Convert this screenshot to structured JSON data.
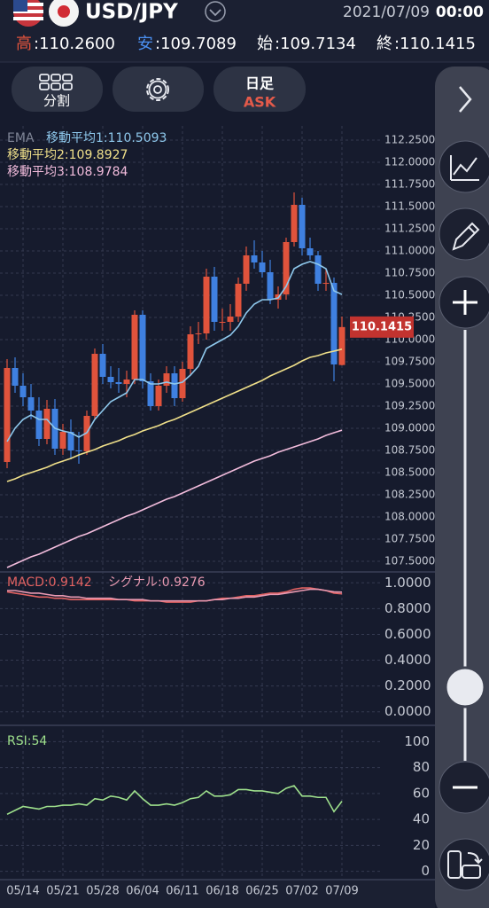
{
  "header": {
    "symbol": "USD/JPY",
    "date": "2021/07/09",
    "time": "00:00",
    "stats": [
      {
        "label": "高",
        "value": ":110.2600"
      },
      {
        "label": "安",
        "value": ":109.7089"
      },
      {
        "label": "始",
        "value": ":109.7134"
      },
      {
        "label": "終",
        "value": ":110.1415"
      }
    ]
  },
  "toolbar": {
    "split": "分割",
    "timeframe": "日足",
    "side": "ASK"
  },
  "chart_data": [
    {
      "type": "candlestick",
      "categories": [
        null,
        null,
        "05/14",
        null,
        null,
        null,
        null,
        "05/21",
        null,
        null,
        null,
        null,
        "05/28",
        null,
        null,
        null,
        null,
        "06/04",
        null,
        null,
        null,
        null,
        "06/11",
        null,
        null,
        null,
        null,
        "06/18",
        null,
        null,
        null,
        null,
        "06/25",
        null,
        null,
        null,
        null,
        "07/02",
        null,
        null,
        null,
        null,
        "07/09"
      ],
      "open": [
        108.62,
        109.68,
        109.48,
        109.35,
        109.2,
        108.88,
        109.22,
        108.77,
        108.96,
        108.75,
        108.74,
        109.14,
        109.84,
        109.58,
        109.52,
        109.5,
        109.55,
        110.28,
        109.53,
        109.25,
        109.48,
        109.62,
        109.34,
        109.67,
        110.06,
        110.07,
        110.71,
        110.2,
        110.2,
        110.26,
        110.63,
        110.95,
        110.87,
        110.76,
        110.45,
        110.51,
        111.1,
        111.52,
        111.03,
        110.95,
        110.63,
        110.64,
        109.7134
      ],
      "high": [
        109.78,
        109.8,
        109.62,
        109.5,
        109.35,
        109.32,
        109.33,
        109.05,
        109.1,
        108.96,
        109.2,
        109.9,
        109.95,
        109.7,
        109.68,
        109.65,
        110.33,
        110.33,
        109.62,
        109.55,
        109.7,
        109.7,
        109.75,
        110.15,
        110.2,
        110.8,
        110.82,
        110.35,
        110.4,
        110.7,
        111.05,
        111.12,
        111.0,
        110.9,
        110.6,
        111.15,
        111.66,
        111.6,
        111.15,
        111.0,
        110.8,
        110.7,
        110.26
      ],
      "low": [
        108.55,
        109.4,
        109.25,
        109.1,
        108.8,
        108.82,
        108.7,
        108.7,
        108.65,
        108.6,
        108.7,
        109.1,
        109.5,
        109.45,
        109.4,
        109.35,
        109.5,
        109.45,
        109.2,
        109.2,
        109.4,
        109.25,
        109.3,
        109.6,
        109.95,
        110.0,
        110.1,
        110.1,
        110.1,
        110.2,
        110.55,
        110.8,
        110.7,
        110.4,
        110.35,
        110.45,
        111.05,
        110.95,
        110.9,
        110.55,
        110.55,
        109.53,
        109.7089
      ],
      "close": [
        109.68,
        109.48,
        109.35,
        109.2,
        108.88,
        109.22,
        108.77,
        108.96,
        108.75,
        108.74,
        109.14,
        109.84,
        109.58,
        109.52,
        109.5,
        109.55,
        110.28,
        109.53,
        109.25,
        109.48,
        109.62,
        109.34,
        109.67,
        110.06,
        110.07,
        110.71,
        110.2,
        110.2,
        110.26,
        110.63,
        110.95,
        110.87,
        110.76,
        110.45,
        110.51,
        111.1,
        111.52,
        111.03,
        110.95,
        110.63,
        110.64,
        109.72,
        110.1415
      ],
      "up_color": "#e0533c",
      "down_color": "#3f80e0",
      "current_price": 110.1415,
      "legend_prefix": "EMA",
      "series": [
        {
          "name": "移動平均1:110.5093",
          "color": "#8ec8ec",
          "values": [
            108.85,
            109.0,
            109.1,
            109.15,
            109.1,
            109.1,
            109.0,
            108.97,
            108.95,
            108.9,
            108.95,
            109.1,
            109.2,
            109.3,
            109.35,
            109.4,
            109.55,
            109.55,
            109.5,
            109.5,
            109.52,
            109.5,
            109.52,
            109.6,
            109.7,
            109.9,
            109.95,
            110.0,
            110.05,
            110.15,
            110.3,
            110.4,
            110.45,
            110.45,
            110.47,
            110.6,
            110.8,
            110.85,
            110.88,
            110.85,
            110.8,
            110.55,
            110.5093
          ]
        },
        {
          "name": "移動平均2:109.8927",
          "color": "#f0e08a",
          "values": [
            108.4,
            108.43,
            108.47,
            108.5,
            108.53,
            108.56,
            108.6,
            108.63,
            108.66,
            108.7,
            108.73,
            108.76,
            108.8,
            108.83,
            108.86,
            108.9,
            108.93,
            108.97,
            109.0,
            109.03,
            109.07,
            109.1,
            109.14,
            109.18,
            109.22,
            109.26,
            109.3,
            109.34,
            109.38,
            109.42,
            109.46,
            109.5,
            109.54,
            109.59,
            109.63,
            109.67,
            109.71,
            109.76,
            109.8,
            109.82,
            109.85,
            109.87,
            109.8927
          ]
        },
        {
          "name": "移動平均3:108.9784",
          "color": "#f2bcdc",
          "values": [
            107.43,
            107.47,
            107.51,
            107.55,
            107.58,
            107.62,
            107.66,
            107.7,
            107.74,
            107.78,
            107.81,
            107.85,
            107.89,
            107.93,
            107.97,
            108.01,
            108.04,
            108.08,
            108.12,
            108.16,
            108.2,
            108.23,
            108.27,
            108.31,
            108.35,
            108.39,
            108.43,
            108.47,
            108.51,
            108.55,
            108.59,
            108.63,
            108.66,
            108.69,
            108.73,
            108.76,
            108.79,
            108.82,
            108.85,
            108.88,
            108.92,
            108.95,
            108.9784
          ]
        }
      ],
      "ylim": [
        107.4,
        112.35
      ],
      "yticks": [
        {
          "value": 112.25,
          "label": "112.2500"
        },
        {
          "value": 112.0,
          "label": "112.0000"
        },
        {
          "value": 111.75,
          "label": "111.7500"
        },
        {
          "value": 111.5,
          "label": "111.5000"
        },
        {
          "value": 111.25,
          "label": "111.2500"
        },
        {
          "value": 111.0,
          "label": "111.0000"
        },
        {
          "value": 110.75,
          "label": "110.7500"
        },
        {
          "value": 110.5,
          "label": "110.5000"
        },
        {
          "value": 110.25,
          "label": "110.2500"
        },
        {
          "value": 110.0,
          "label": "110.0000"
        },
        {
          "value": 109.75,
          "label": "109.7500"
        },
        {
          "value": 109.5,
          "label": "109.5000"
        },
        {
          "value": 109.25,
          "label": "109.2500"
        },
        {
          "value": 109.0,
          "label": "109.0000"
        },
        {
          "value": 108.75,
          "label": "108.7500"
        },
        {
          "value": 108.5,
          "label": "108.5000"
        },
        {
          "value": 108.25,
          "label": "108.2500"
        },
        {
          "value": 108.0,
          "label": "108.0000"
        },
        {
          "value": 107.75,
          "label": "107.7500"
        },
        {
          "value": 107.5,
          "label": "107.5000"
        }
      ],
      "grid": true
    },
    {
      "type": "line",
      "series": [
        {
          "name": "MACD:0.9142",
          "color": "#e26262",
          "values": [
            0.93,
            0.92,
            0.91,
            0.9,
            0.89,
            0.89,
            0.88,
            0.88,
            0.87,
            0.87,
            0.87,
            0.87,
            0.87,
            0.87,
            0.87,
            0.87,
            0.86,
            0.86,
            0.86,
            0.86,
            0.85,
            0.85,
            0.85,
            0.85,
            0.86,
            0.86,
            0.87,
            0.88,
            0.88,
            0.89,
            0.9,
            0.9,
            0.91,
            0.92,
            0.92,
            0.93,
            0.95,
            0.96,
            0.96,
            0.95,
            0.94,
            0.92,
            0.9142
          ]
        },
        {
          "name": "シグナル:0.9276",
          "color": "#e99ab2",
          "values": [
            0.94,
            0.94,
            0.93,
            0.92,
            0.92,
            0.91,
            0.9,
            0.9,
            0.89,
            0.89,
            0.88,
            0.88,
            0.88,
            0.88,
            0.87,
            0.87,
            0.87,
            0.87,
            0.86,
            0.86,
            0.86,
            0.86,
            0.86,
            0.86,
            0.86,
            0.86,
            0.87,
            0.87,
            0.88,
            0.88,
            0.89,
            0.89,
            0.9,
            0.91,
            0.91,
            0.92,
            0.93,
            0.94,
            0.95,
            0.95,
            0.94,
            0.93,
            0.9276
          ]
        }
      ],
      "ylim": [
        -0.05,
        1.05
      ],
      "yticks": [
        {
          "value": 1.0,
          "label": "1.0000"
        },
        {
          "value": 0.8,
          "label": "0.8000"
        },
        {
          "value": 0.6,
          "label": "0.6000"
        },
        {
          "value": 0.4,
          "label": "0.4000"
        },
        {
          "value": 0.2,
          "label": "0.2000"
        },
        {
          "value": 0,
          "label": "0.0000"
        }
      ],
      "grid": true
    },
    {
      "type": "line",
      "series": [
        {
          "name": "RSI:54",
          "color": "#9ee08c",
          "values": [
            44,
            47,
            50,
            49,
            48,
            50,
            50,
            51,
            51,
            52,
            51,
            56,
            55,
            58,
            57,
            55,
            62,
            56,
            51,
            51,
            52,
            51,
            53,
            56,
            57,
            62,
            58,
            58,
            59,
            63,
            63,
            62,
            62,
            61,
            60,
            64,
            66,
            58,
            58,
            57,
            57,
            46,
            54
          ]
        }
      ],
      "ylim": [
        -5,
        105
      ],
      "yticks": [
        100,
        80,
        60,
        40,
        20,
        0
      ],
      "grid": true
    }
  ]
}
